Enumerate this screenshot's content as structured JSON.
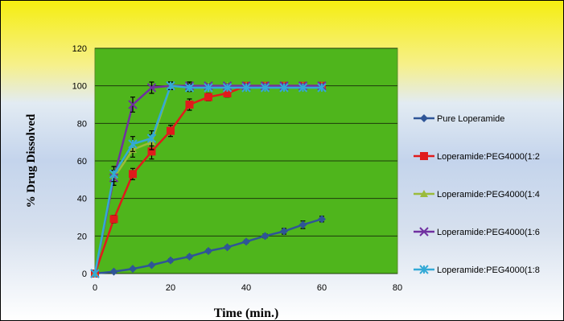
{
  "chart_data": {
    "type": "line",
    "title": "",
    "xlabel": "Time (min.)",
    "ylabel": "% Drug Dissolved",
    "xlim": [
      0,
      80
    ],
    "ylim": [
      0,
      120
    ],
    "xticks": [
      0,
      20,
      40,
      60,
      80
    ],
    "yticks": [
      0,
      20,
      40,
      60,
      80,
      100,
      120
    ],
    "grid": true,
    "legend_position": "right",
    "plot_background": "#4fb51c",
    "series": [
      {
        "name": "Pure Loperamide",
        "color": "#2f5597",
        "marker": "diamond",
        "x": [
          0,
          5,
          10,
          15,
          20,
          25,
          30,
          35,
          40,
          45,
          50,
          55,
          60
        ],
        "y": [
          0,
          1,
          2.5,
          4.5,
          7,
          9,
          12,
          14,
          17,
          20,
          22.5,
          26,
          29
        ],
        "err": [
          0,
          0.5,
          0.5,
          0.5,
          0.8,
          0.8,
          0.8,
          0.8,
          0.8,
          1,
          1.5,
          2,
          1.5
        ]
      },
      {
        "name": "Loperamide:PEG4000(1:2",
        "color": "#e01b1b",
        "marker": "square",
        "x": [
          0,
          5,
          10,
          15,
          20,
          25,
          30,
          35,
          40,
          45,
          50,
          55,
          60
        ],
        "y": [
          0,
          29,
          53,
          65,
          76,
          90,
          94,
          96,
          100,
          100,
          100,
          100,
          100
        ],
        "err": [
          0,
          2,
          3,
          4,
          3,
          3,
          2,
          2,
          1,
          1,
          1,
          1,
          1
        ]
      },
      {
        "name": "Loperamide:PEG4000(1:4",
        "color": "#9bbb3b",
        "marker": "triangle",
        "x": [
          0,
          5,
          10,
          15,
          20,
          25,
          30,
          35,
          40,
          45,
          50,
          55,
          60
        ],
        "y": [
          0,
          51,
          66,
          70,
          100,
          100,
          100,
          100,
          100,
          100,
          100,
          100,
          100
        ],
        "err": [
          0,
          4,
          4,
          4,
          2,
          2,
          1,
          1,
          1,
          1,
          1,
          1,
          1
        ]
      },
      {
        "name": "Loperamide:PEG4000(1:6",
        "color": "#7030a0",
        "marker": "x",
        "x": [
          0,
          5,
          10,
          15,
          20,
          25,
          30,
          35,
          40,
          45,
          50,
          55,
          60
        ],
        "y": [
          0,
          51,
          90,
          99,
          100,
          100,
          100,
          100,
          100,
          100,
          100,
          100,
          100
        ],
        "err": [
          0,
          4,
          4,
          3,
          2,
          2,
          1,
          1,
          1,
          1,
          1,
          1,
          1
        ]
      },
      {
        "name": "Loperamide:PEG4000(1:8",
        "color": "#33a9d6",
        "marker": "star",
        "x": [
          0,
          5,
          10,
          15,
          20,
          25,
          30,
          35,
          40,
          45,
          50,
          55,
          60
        ],
        "y": [
          0,
          53,
          69,
          72,
          100,
          99,
          99,
          99,
          99,
          99,
          99,
          99,
          99
        ],
        "err": [
          0,
          4,
          4,
          4,
          2,
          2,
          1,
          1,
          1,
          1,
          1,
          1,
          1
        ]
      }
    ]
  }
}
